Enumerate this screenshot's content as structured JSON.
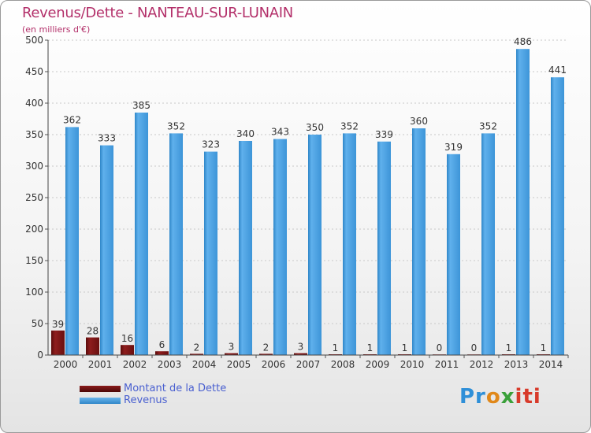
{
  "title": "Revenus/Dette - NANTEAU-SUR-LUNAIN",
  "subtitle": "(en milliers d'€)",
  "logo": {
    "p1": "Pr",
    "p2": "o",
    "p3": "x",
    "p4": "iti"
  },
  "colors": {
    "dette": "#7a1414",
    "revenus": "#4aa3e2",
    "title": "#b3306a",
    "legend_text": "#4a60d0"
  },
  "chart_data": {
    "type": "bar",
    "title": "Revenus/Dette - NANTEAU-SUR-LUNAIN",
    "ylabel": "(en milliers d'€)",
    "categories": [
      "2000",
      "2001",
      "2002",
      "2003",
      "2004",
      "2005",
      "2006",
      "2007",
      "2008",
      "2009",
      "2010",
      "2011",
      "2012",
      "2013",
      "2014"
    ],
    "ylim": [
      0,
      500
    ],
    "yticks": [
      0,
      50,
      100,
      150,
      200,
      250,
      300,
      350,
      400,
      450,
      500
    ],
    "grid": true,
    "legend_position": "bottom-left",
    "series": [
      {
        "name": "Montant de la Dette",
        "values": [
          39,
          28,
          16,
          6,
          2,
          3,
          2,
          3,
          1,
          1,
          1,
          0,
          0,
          1,
          1
        ]
      },
      {
        "name": "Revenus",
        "values": [
          362,
          333,
          385,
          352,
          323,
          340,
          343,
          350,
          352,
          339,
          360,
          319,
          352,
          486,
          441
        ]
      }
    ]
  }
}
